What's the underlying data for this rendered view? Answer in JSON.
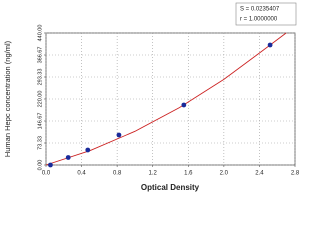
{
  "chart_data": {
    "type": "scatter",
    "xlabel": "Optical Density",
    "ylabel": "Human Hepc concentration (ng/ml)",
    "annotations": [
      "S = 0.0235407",
      "r = 1.0000000"
    ],
    "series": [
      {
        "mode": "line",
        "color": "#cc2222",
        "x": [
          0,
          0.5,
          1.0,
          1.5,
          2.0,
          2.5,
          2.7
        ],
        "values": [
          0,
          48.5,
          112.2,
          191.3,
          285.6,
          395.3,
          440
        ]
      },
      {
        "mode": "markers",
        "color": "#1a2a9a",
        "x": [
          0.05,
          0.25,
          0.47,
          0.82,
          1.55,
          2.52
        ],
        "values": [
          0,
          25,
          50,
          100,
          200,
          400
        ]
      }
    ],
    "xlim": [
      0,
      2.8
    ],
    "xticks": [
      {
        "value": 0,
        "label": "0.0"
      },
      {
        "value": 0.4,
        "label": "0.4"
      },
      {
        "value": 0.8,
        "label": "0.8"
      },
      {
        "value": 1.2,
        "label": "1.2"
      },
      {
        "value": 1.6,
        "label": "1.6"
      },
      {
        "value": 2.0,
        "label": "2.0"
      },
      {
        "value": 2.4,
        "label": "2.4"
      },
      {
        "value": 2.8,
        "label": "2.8"
      }
    ],
    "ylim": [
      0,
      440
    ],
    "yticks": [
      {
        "value": 0,
        "label": "0.00"
      },
      {
        "value": 73.33,
        "label": "73.33"
      },
      {
        "value": 146.67,
        "label": "146.67"
      },
      {
        "value": 220,
        "label": "220.00"
      },
      {
        "value": 293.33,
        "label": "293.33"
      },
      {
        "value": 366.67,
        "label": "366.67"
      },
      {
        "value": 440,
        "label": "440.00"
      }
    ],
    "grid": true
  }
}
